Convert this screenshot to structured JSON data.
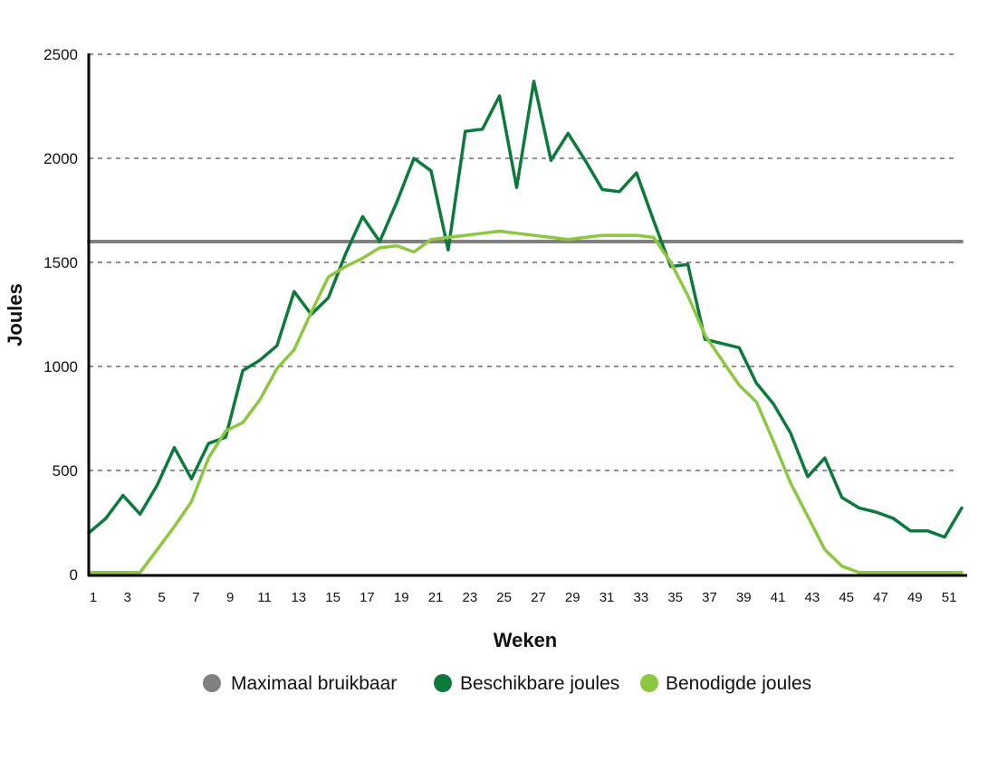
{
  "chart_data": {
    "type": "line",
    "xlabel": "Weken",
    "ylabel": "Joules",
    "ylim": [
      0,
      2500
    ],
    "xlim": [
      1,
      52
    ],
    "y_ticks": [
      "0",
      "500",
      "1000",
      "1500",
      "2000",
      "2500"
    ],
    "x_ticks": [
      "1",
      "3",
      "5",
      "7",
      "9",
      "11",
      "13",
      "15",
      "17",
      "19",
      "21",
      "23",
      "25",
      "27",
      "29",
      "31",
      "33",
      "35",
      "37",
      "39",
      "41",
      "43",
      "45",
      "47",
      "49",
      "51"
    ],
    "grid": "horizontal dashed",
    "legend_position": "bottom",
    "x": [
      1,
      2,
      3,
      4,
      5,
      6,
      7,
      8,
      9,
      10,
      11,
      12,
      13,
      14,
      15,
      16,
      17,
      18,
      19,
      20,
      21,
      22,
      23,
      24,
      25,
      26,
      27,
      28,
      29,
      30,
      31,
      32,
      33,
      34,
      35,
      36,
      37,
      38,
      39,
      40,
      41,
      42,
      43,
      44,
      45,
      46,
      47,
      48,
      49,
      50,
      51,
      52
    ],
    "series": [
      {
        "name": "Maximaal bruikbaar",
        "color": "#808080",
        "values": [
          1600,
          1600,
          1600,
          1600,
          1600,
          1600,
          1600,
          1600,
          1600,
          1600,
          1600,
          1600,
          1600,
          1600,
          1600,
          1600,
          1600,
          1600,
          1600,
          1600,
          1600,
          1600,
          1600,
          1600,
          1600,
          1600,
          1600,
          1600,
          1600,
          1600,
          1600,
          1600,
          1600,
          1600,
          1600,
          1600,
          1600,
          1600,
          1600,
          1600,
          1600,
          1600,
          1600,
          1600,
          1600,
          1600,
          1600,
          1600,
          1600,
          1600,
          1600,
          1600
        ]
      },
      {
        "name": "Beschikbare joules",
        "color": "#0b7a3b",
        "values": [
          200,
          270,
          380,
          290,
          430,
          610,
          460,
          630,
          660,
          980,
          1030,
          1100,
          1360,
          1250,
          1330,
          1540,
          1720,
          1600,
          1790,
          2000,
          1940,
          1560,
          2130,
          2140,
          2300,
          1860,
          2370,
          1990,
          2120,
          1990,
          1850,
          1840,
          1930,
          1700,
          1480,
          1490,
          1130,
          1110,
          1090,
          920,
          820,
          680,
          470,
          560,
          370,
          320,
          300,
          270,
          210,
          210,
          180,
          320
        ]
      },
      {
        "name": "Benodigde joules",
        "color": "#8dc63f",
        "values": [
          10,
          10,
          10,
          10,
          120,
          230,
          350,
          560,
          690,
          730,
          840,
          990,
          1080,
          1260,
          1430,
          1480,
          1520,
          1570,
          1580,
          1550,
          1610,
          1620,
          1630,
          1640,
          1650,
          1640,
          1630,
          1620,
          1610,
          1620,
          1630,
          1630,
          1630,
          1620,
          1500,
          1340,
          1150,
          1030,
          910,
          830,
          640,
          440,
          280,
          120,
          40,
          10,
          10,
          10,
          10,
          10,
          10,
          10
        ]
      }
    ]
  }
}
